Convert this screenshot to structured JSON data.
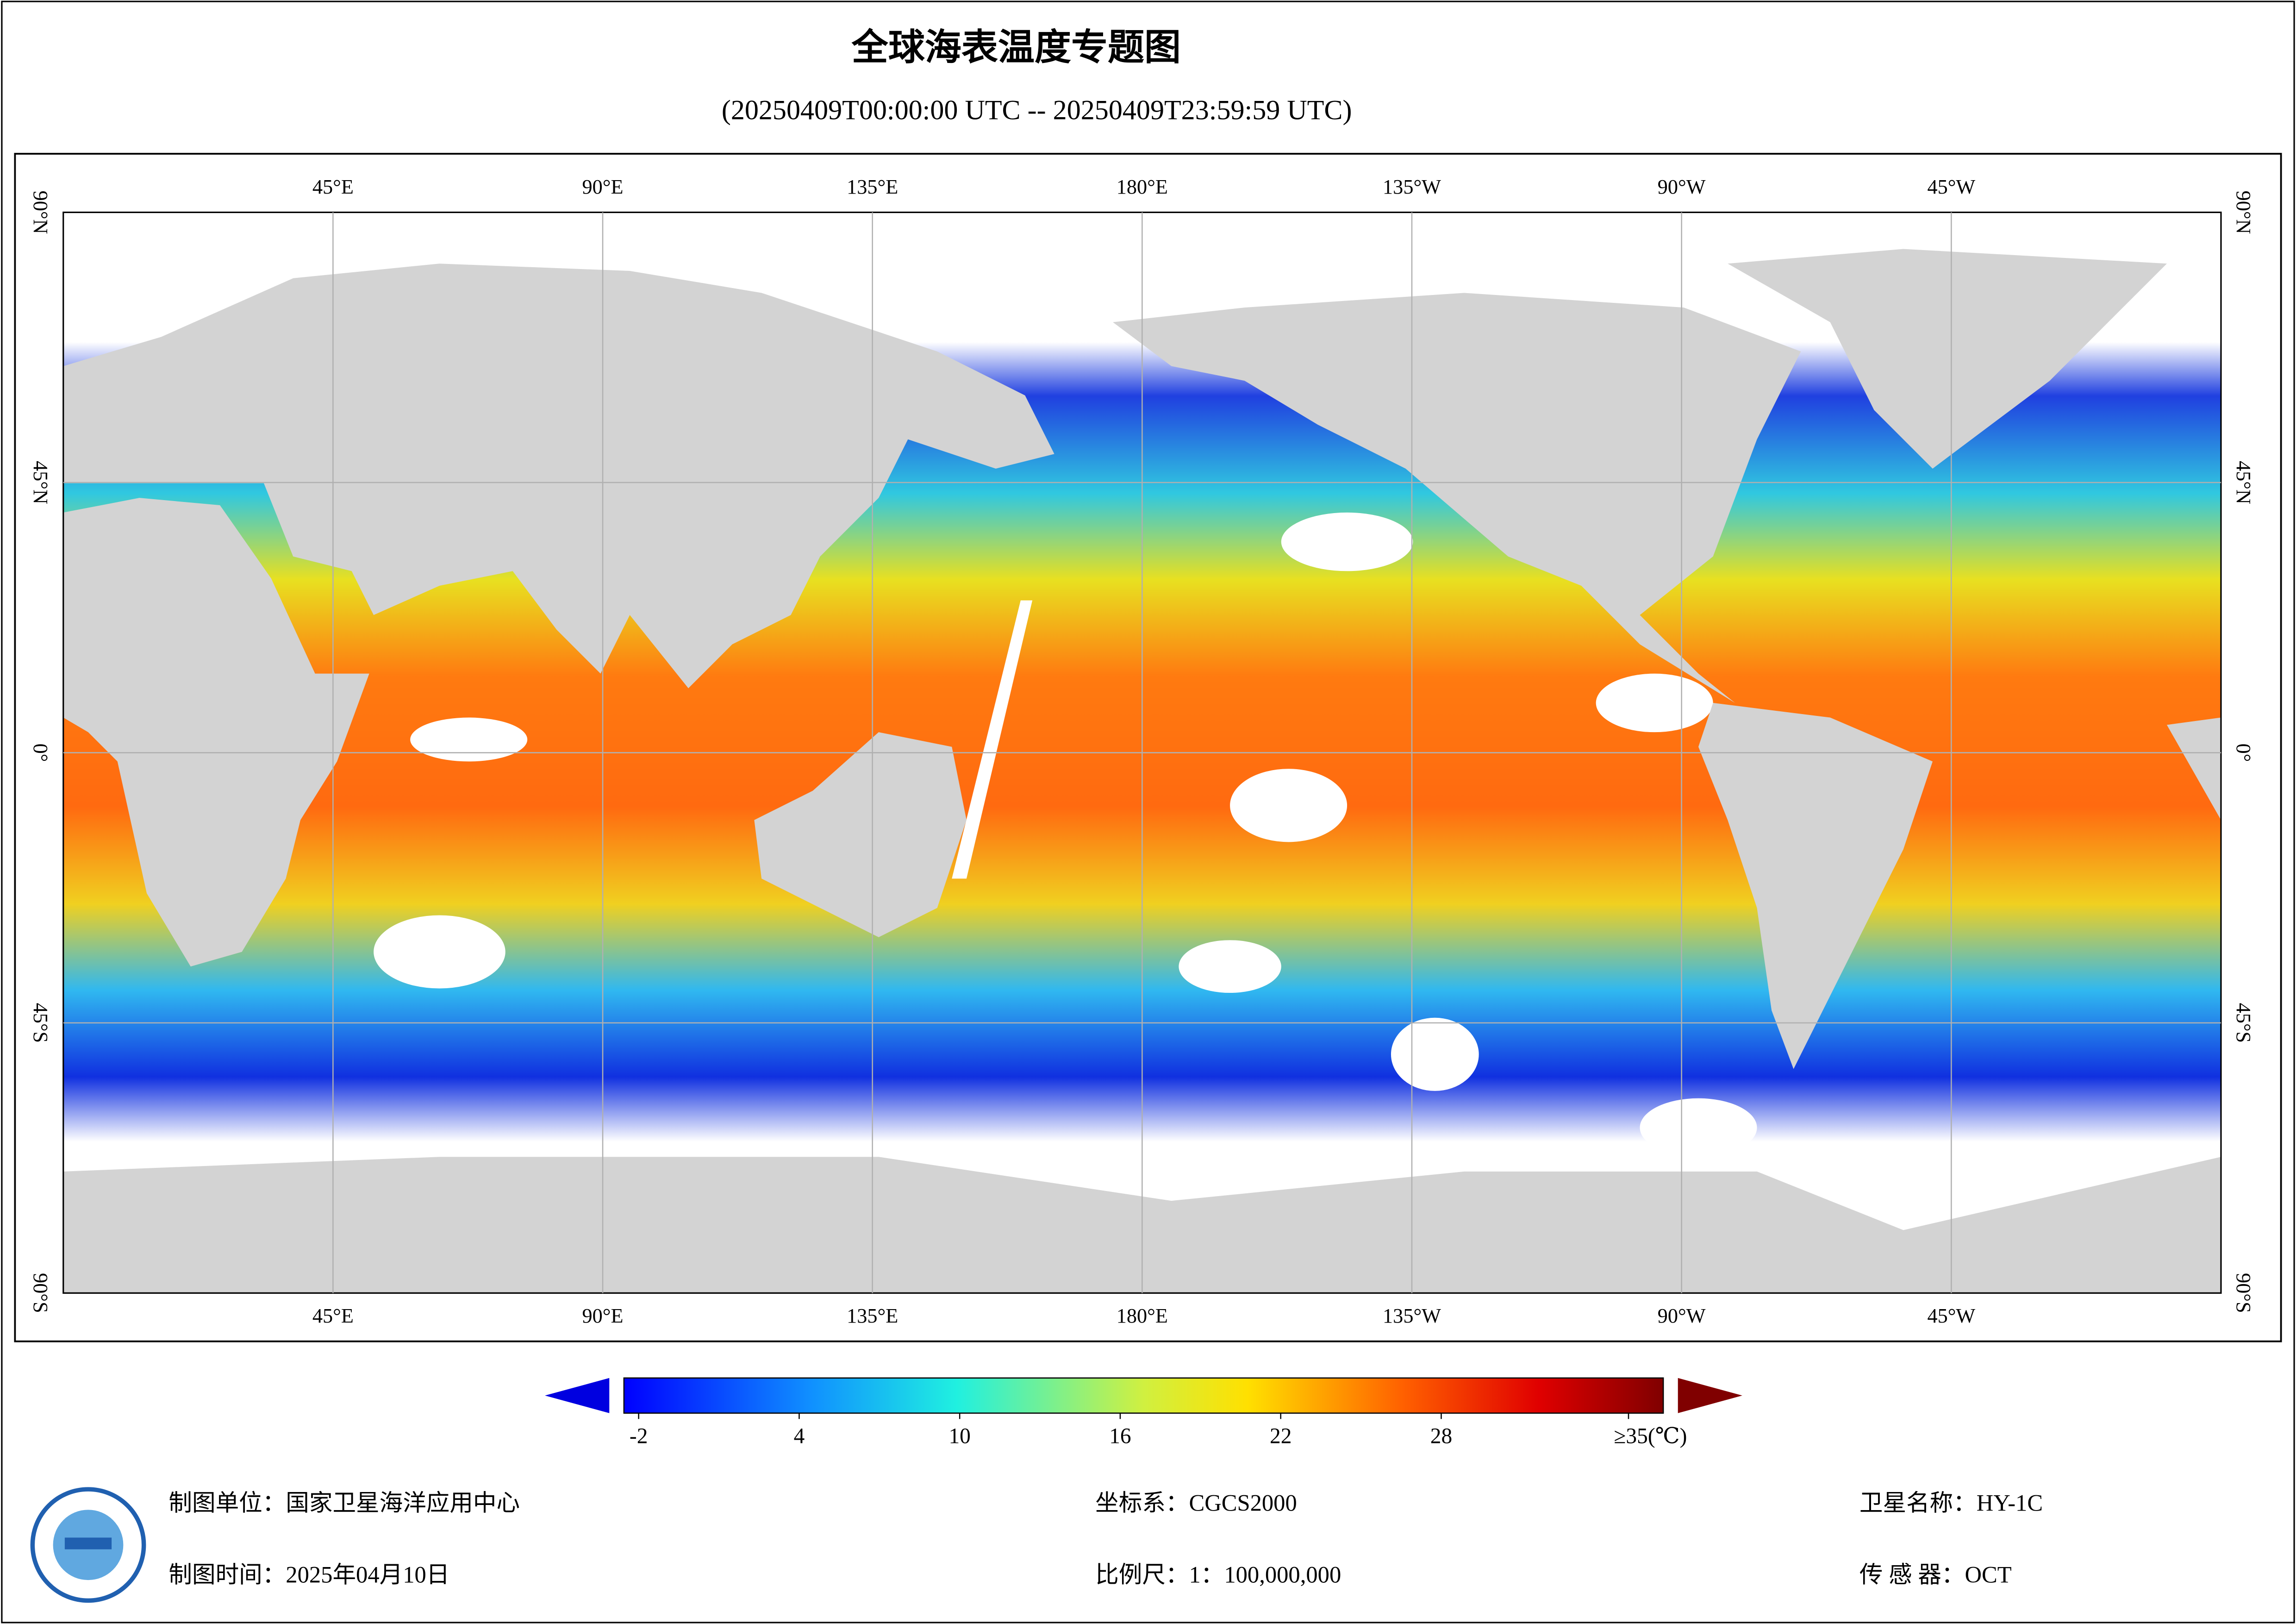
{
  "title": "全球海表温度专题图",
  "subtitle": "(20250409T00:00:00 UTC -- 20250409T23:59:59 UTC)",
  "map": {
    "lon_labels": [
      "45°E",
      "90°E",
      "135°E",
      "180°E",
      "135°W",
      "90°W",
      "45°W"
    ],
    "lat_labels": [
      "90°N",
      "45°N",
      "0°",
      "45°S",
      "90°S"
    ]
  },
  "colorbar": {
    "range": [
      -2.55,
      36.3
    ],
    "ticks": [
      -2,
      4,
      10,
      16,
      22,
      28,
      {
        "value": 35,
        "label": "≥35(℃)"
      }
    ]
  },
  "footer": {
    "unit": "制图单位：国家卫星海洋应用中心",
    "time": "制图时间：2025年04月10日",
    "crs": "坐标系：CGCS2000",
    "scale": "比例尺：1：100,000,000",
    "satellite": "卫星名称：HY-1C",
    "sensor": "传 感 器：OCT"
  }
}
